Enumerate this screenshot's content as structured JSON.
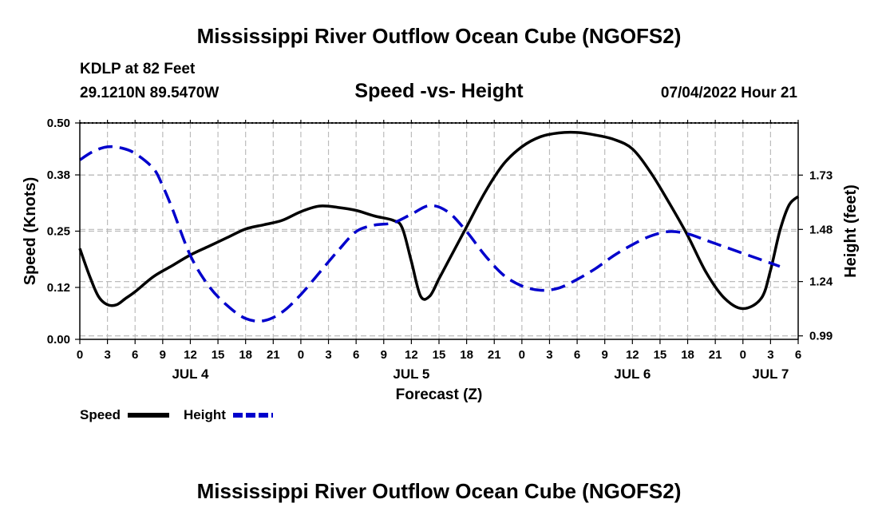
{
  "header": {
    "title": "Mississippi River Outflow Ocean Cube (NGOFS2)",
    "station": "KDLP at 82 Feet",
    "coordinates": "29.1210N  89.5470W",
    "datetime": "07/04/2022 Hour 21"
  },
  "footer": {
    "title": "Mississippi River Outflow Ocean Cube (NGOFS2)"
  },
  "colors": {
    "speed": "#000000",
    "height": "#0000cc",
    "grid": "#bbbbbb"
  },
  "chart_data": {
    "type": "line",
    "title": "Speed -vs- Height",
    "xlabel": "Forecast (Z)",
    "ylabel": "Speed (Knots)",
    "y2label": "Height (feet)",
    "x_hours_range": [
      0,
      78
    ],
    "x_tick_labels": [
      "0",
      "3",
      "6",
      "9",
      "12",
      "15",
      "18",
      "21",
      "0",
      "3",
      "6",
      "9",
      "12",
      "15",
      "18",
      "21",
      "0",
      "3",
      "6",
      "9",
      "12",
      "15",
      "18",
      "21",
      "0",
      "3",
      "6"
    ],
    "day_labels": [
      {
        "label": "JUL 4",
        "hour": 12
      },
      {
        "label": "JUL 5",
        "hour": 36
      },
      {
        "label": "JUL 6",
        "hour": 60
      },
      {
        "label": "JUL 7",
        "hour": 75
      }
    ],
    "ylim": [
      0,
      0.5
    ],
    "y_ticks": [
      "0.00",
      "0.12",
      "0.25",
      "0.38",
      "0.50"
    ],
    "y2lim": [
      0.974,
      1.97
    ],
    "y2_ticks": [
      "0.99",
      "1.24",
      "1.48",
      "1.73"
    ],
    "grid": true,
    "legend_position": "bottom-left",
    "series": [
      {
        "name": "Speed",
        "axis": "left",
        "style": "solid",
        "x": [
          0,
          1,
          2,
          3,
          4,
          5,
          6,
          8,
          10,
          12,
          14,
          16,
          18,
          20,
          22,
          24,
          26,
          28,
          30,
          32,
          34,
          35,
          36,
          37,
          38,
          39,
          40,
          42,
          44,
          46,
          48,
          50,
          52,
          54,
          56,
          58,
          60,
          62,
          64,
          66,
          68,
          70,
          72,
          74,
          75,
          76,
          77,
          78
        ],
        "values": [
          0.21,
          0.15,
          0.1,
          0.08,
          0.08,
          0.095,
          0.11,
          0.145,
          0.17,
          0.195,
          0.215,
          0.235,
          0.255,
          0.265,
          0.275,
          0.295,
          0.308,
          0.305,
          0.298,
          0.285,
          0.275,
          0.258,
          0.18,
          0.1,
          0.1,
          0.14,
          0.18,
          0.26,
          0.34,
          0.405,
          0.445,
          0.468,
          0.477,
          0.478,
          0.472,
          0.462,
          0.44,
          0.385,
          0.315,
          0.24,
          0.155,
          0.095,
          0.071,
          0.095,
          0.16,
          0.25,
          0.31,
          0.33
        ]
      },
      {
        "name": "Height",
        "axis": "right",
        "style": "dashed",
        "x": [
          0,
          1.5,
          3,
          4.5,
          6,
          8,
          9,
          10,
          12,
          14,
          16,
          18,
          20,
          22,
          24,
          26,
          28,
          30,
          32,
          34,
          36,
          38,
          40,
          42,
          44,
          46,
          48,
          50,
          52,
          54,
          56,
          58,
          60,
          62,
          64,
          66,
          68,
          70,
          72,
          74,
          76
        ],
        "values": [
          1.8,
          1.84,
          1.86,
          1.855,
          1.83,
          1.76,
          1.68,
          1.58,
          1.36,
          1.22,
          1.13,
          1.07,
          1.06,
          1.1,
          1.18,
          1.28,
          1.38,
          1.47,
          1.5,
          1.51,
          1.55,
          1.59,
          1.56,
          1.47,
          1.36,
          1.27,
          1.22,
          1.2,
          1.21,
          1.25,
          1.3,
          1.36,
          1.41,
          1.45,
          1.47,
          1.46,
          1.43,
          1.4,
          1.37,
          1.34,
          1.31
        ]
      }
    ]
  }
}
